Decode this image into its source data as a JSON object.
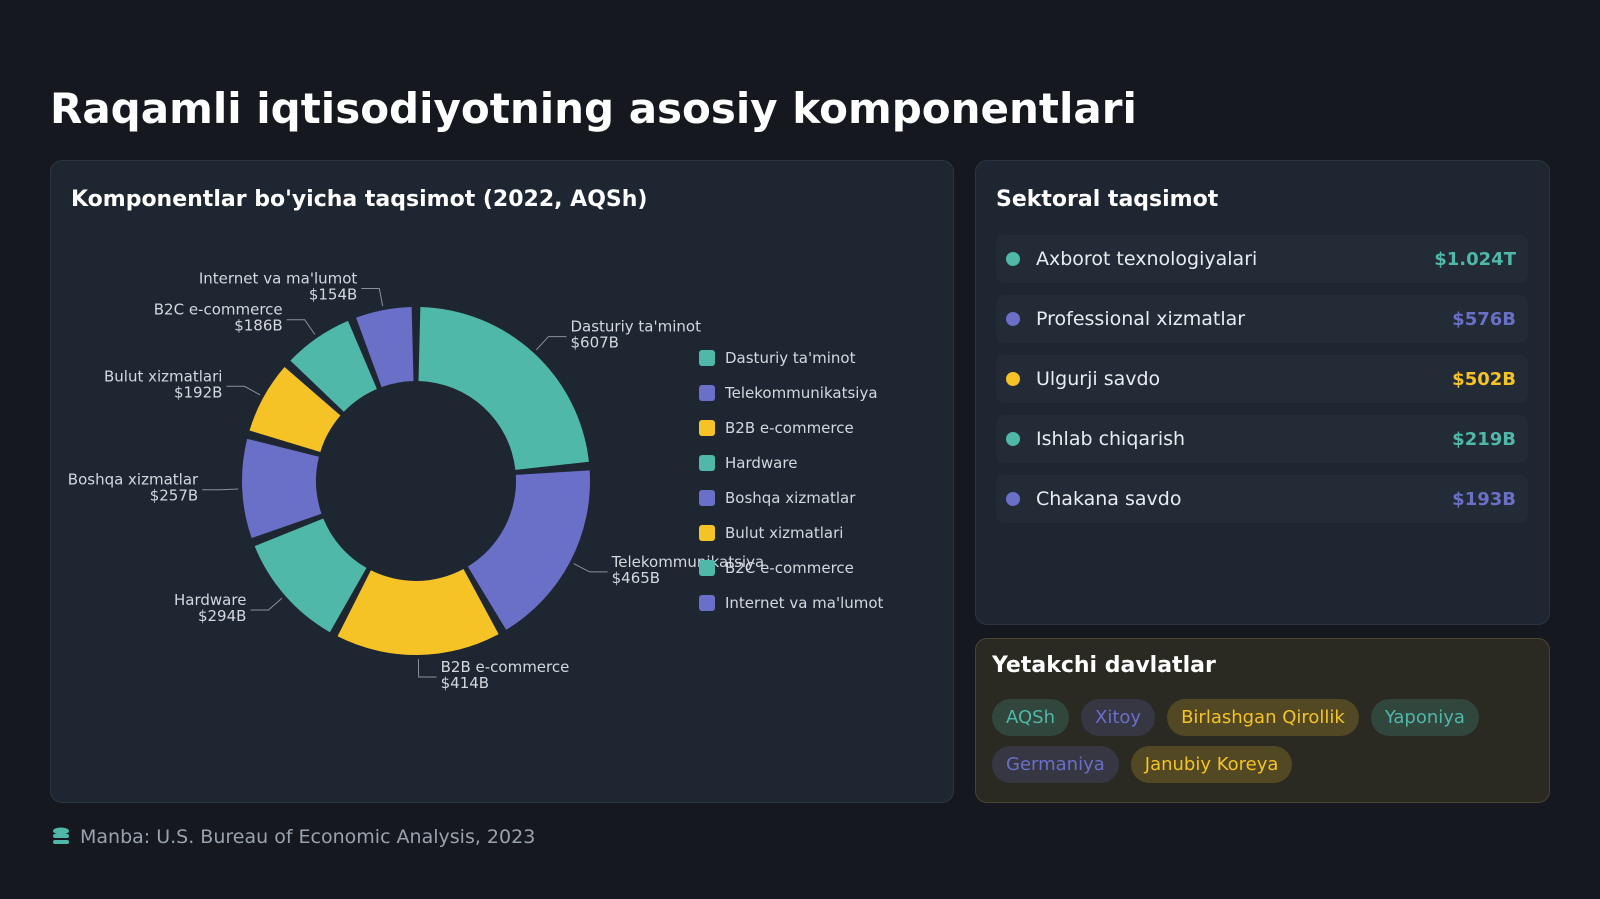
{
  "title": "Raqamli iqtisodiyotning asosiy komponentlari",
  "chart_data": {
    "type": "donut",
    "title": "Komponentlar bo'yicha taqsimot (2022, AQSh)",
    "categories": [
      "Dasturiy ta'minot",
      "Telekommunikatsiya",
      "B2B e-commerce",
      "Hardware",
      "Boshqa xizmatlar",
      "Bulut xizmatlari",
      "B2C e-commerce",
      "Internet va ma'lumot"
    ],
    "values": [
      607,
      465,
      414,
      294,
      257,
      192,
      186,
      154
    ],
    "value_labels": [
      "$607B",
      "$465B",
      "$414B",
      "$294B",
      "$257B",
      "$192B",
      "$186B",
      "$154B"
    ],
    "colors": [
      "#4fb8a8",
      "#6a6fc8",
      "#f5c326",
      "#4fb8a8",
      "#6a6fc8",
      "#f5c326",
      "#4fb8a8",
      "#6a6fc8"
    ],
    "legend": "right"
  },
  "sectors": {
    "title": "Sektoral taqsimot",
    "items": [
      {
        "name": "Axborot texnologiyalari",
        "value": "$1.024T",
        "color": "#4fb8a8"
      },
      {
        "name": "Professional xizmatlar",
        "value": "$576B",
        "color": "#6a6fc8"
      },
      {
        "name": "Ulgurji savdo",
        "value": "$502B",
        "color": "#f5c326"
      },
      {
        "name": "Ishlab chiqarish",
        "value": "$219B",
        "color": "#4fb8a8"
      },
      {
        "name": "Chakana savdo",
        "value": "$193B",
        "color": "#6a6fc8"
      }
    ]
  },
  "countries": {
    "title": "Yetakchi davlatlar",
    "items": [
      {
        "name": "AQSh",
        "color": "#4fb8a8"
      },
      {
        "name": "Xitoy",
        "color": "#6a6fc8"
      },
      {
        "name": "Birlashgan Qirollik",
        "color": "#f5c326"
      },
      {
        "name": "Yaponiya",
        "color": "#4fb8a8"
      },
      {
        "name": "Germaniya",
        "color": "#6a6fc8"
      },
      {
        "name": "Janubiy Koreya",
        "color": "#f5c326"
      }
    ]
  },
  "footer": "Manba: U.S. Bureau of Economic Analysis, 2023"
}
